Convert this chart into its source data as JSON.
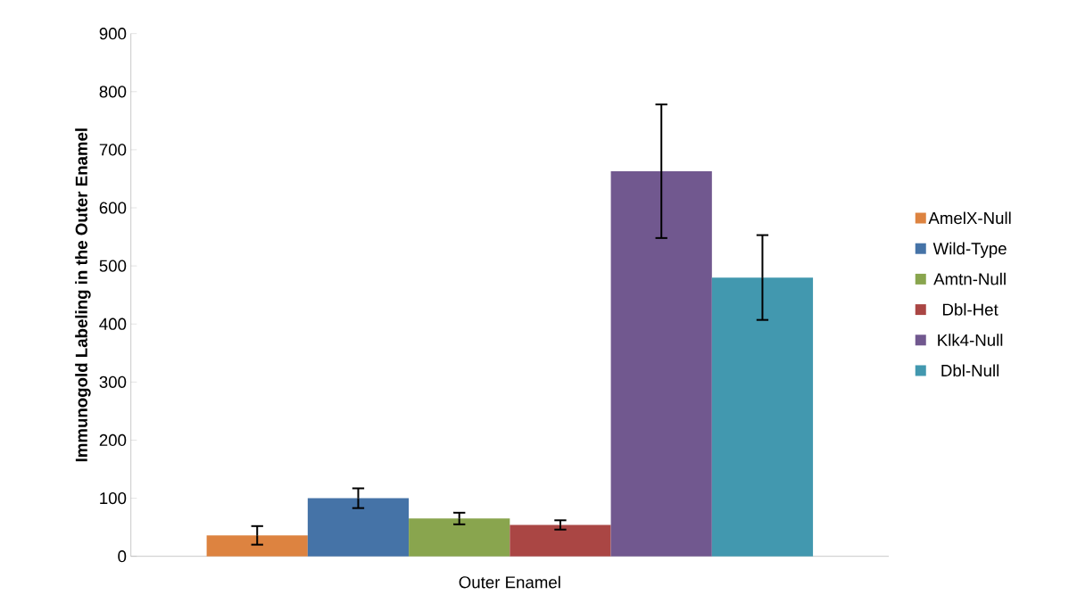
{
  "chart_data": {
    "type": "bar",
    "ylabel": "Immunogold Labeling in the Outer Enamel",
    "categories": [
      "Outer Enamel"
    ],
    "series": [
      {
        "name": "AmelX-Null",
        "color": "#dd8340",
        "values": [
          36
        ],
        "errors": [
          16
        ]
      },
      {
        "name": "Wild-Type",
        "color": "#4573a7",
        "values": [
          100
        ],
        "errors": [
          17
        ]
      },
      {
        "name": "Amtn-Null",
        "color": "#89a54e",
        "values": [
          65
        ],
        "errors": [
          10
        ]
      },
      {
        "name": "Dbl-Het",
        "color": "#aa4644",
        "values": [
          54
        ],
        "errors": [
          8
        ]
      },
      {
        "name": "Klk4-Null",
        "color": "#71588f",
        "values": [
          663
        ],
        "errors": [
          115
        ]
      },
      {
        "name": "Dbl-Null",
        "color": "#4298af",
        "values": [
          480
        ],
        "errors": [
          73
        ]
      }
    ],
    "ylim": [
      0,
      900
    ],
    "yticks": [
      0,
      100,
      200,
      300,
      400,
      500,
      600,
      700,
      800,
      900
    ],
    "legend": "right",
    "grid": false
  }
}
